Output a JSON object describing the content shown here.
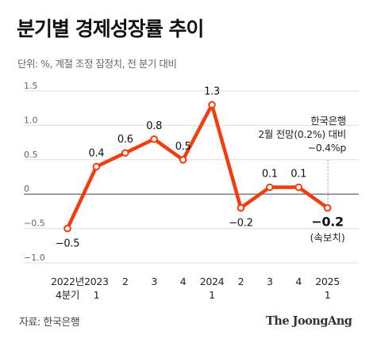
{
  "header": {
    "title": "분기별 경제성장률 추이",
    "subtitle": "단위: %, 계절 조정 잠정치, 전 분기 대비"
  },
  "footer": {
    "source": "자료: 한국은행",
    "logo": "The JoongAng"
  },
  "annotation": {
    "lines": [
      "한국은행",
      "2월 전망(0.2%) 대비",
      "−0.4%p"
    ],
    "preliminary_note": "(속보치)"
  },
  "colors": {
    "line": "#f43c0c",
    "point_fill": "#ffffff",
    "zero_line": "#555555",
    "grid": "#dddddd",
    "text": "#222222"
  },
  "chart_data": {
    "type": "line",
    "title": "분기별 경제성장률 추이",
    "ylim": [
      -1.0,
      1.5
    ],
    "yticks": [
      1.5,
      1.0,
      0.5,
      0,
      -0.5,
      -1.0
    ],
    "ytick_labels": [
      "1.5",
      "1.0",
      "0.5",
      "0",
      "−0.5",
      "−1.0"
    ],
    "grid": true,
    "categories": [
      [
        "2022년",
        "4분기"
      ],
      [
        "2023",
        "1"
      ],
      [
        "2"
      ],
      [
        "3"
      ],
      [
        "4"
      ],
      [
        "2024",
        "1"
      ],
      [
        "2"
      ],
      [
        "3"
      ],
      [
        "4"
      ],
      [
        "2025",
        "1"
      ]
    ],
    "values": [
      -0.5,
      0.4,
      0.6,
      0.8,
      0.5,
      1.3,
      -0.2,
      0.1,
      0.1,
      -0.2
    ],
    "data_labels": [
      "−0.5",
      "0.4",
      "0.6",
      "0.8",
      "0.5",
      "1.3",
      "−0.2",
      "0.1",
      "0.1",
      "−0.2"
    ]
  }
}
